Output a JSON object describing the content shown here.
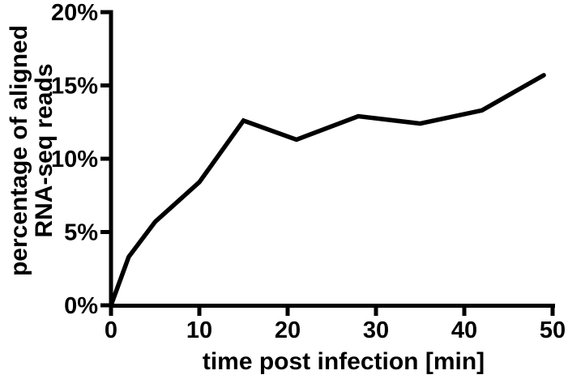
{
  "chart_data": {
    "type": "line",
    "xlabel": "time post infection [min]",
    "ylabel_lines": [
      "percentage of aligned",
      "RNA-seq reads"
    ],
    "x": [
      0,
      2,
      5,
      10,
      15,
      21,
      28,
      35,
      42,
      49
    ],
    "y": [
      0,
      3.3,
      5.7,
      8.4,
      12.6,
      11.3,
      12.9,
      12.4,
      13.3,
      15.7
    ],
    "y_unit": "%",
    "xlim": [
      0,
      50
    ],
    "ylim": [
      0,
      20
    ],
    "xtick_values": [
      0,
      10,
      20,
      30,
      40,
      50
    ],
    "xtick_labels": [
      "0",
      "10",
      "20",
      "30",
      "40",
      "50"
    ],
    "ytick_values": [
      0,
      5,
      10,
      15,
      20
    ],
    "ytick_labels": [
      "0%",
      "5%",
      "10%",
      "15%",
      "20%"
    ],
    "grid": false,
    "legend": false,
    "colors": {
      "line": "#000000",
      "axis": "#000000",
      "text": "#000000",
      "background": "#ffffff"
    }
  }
}
